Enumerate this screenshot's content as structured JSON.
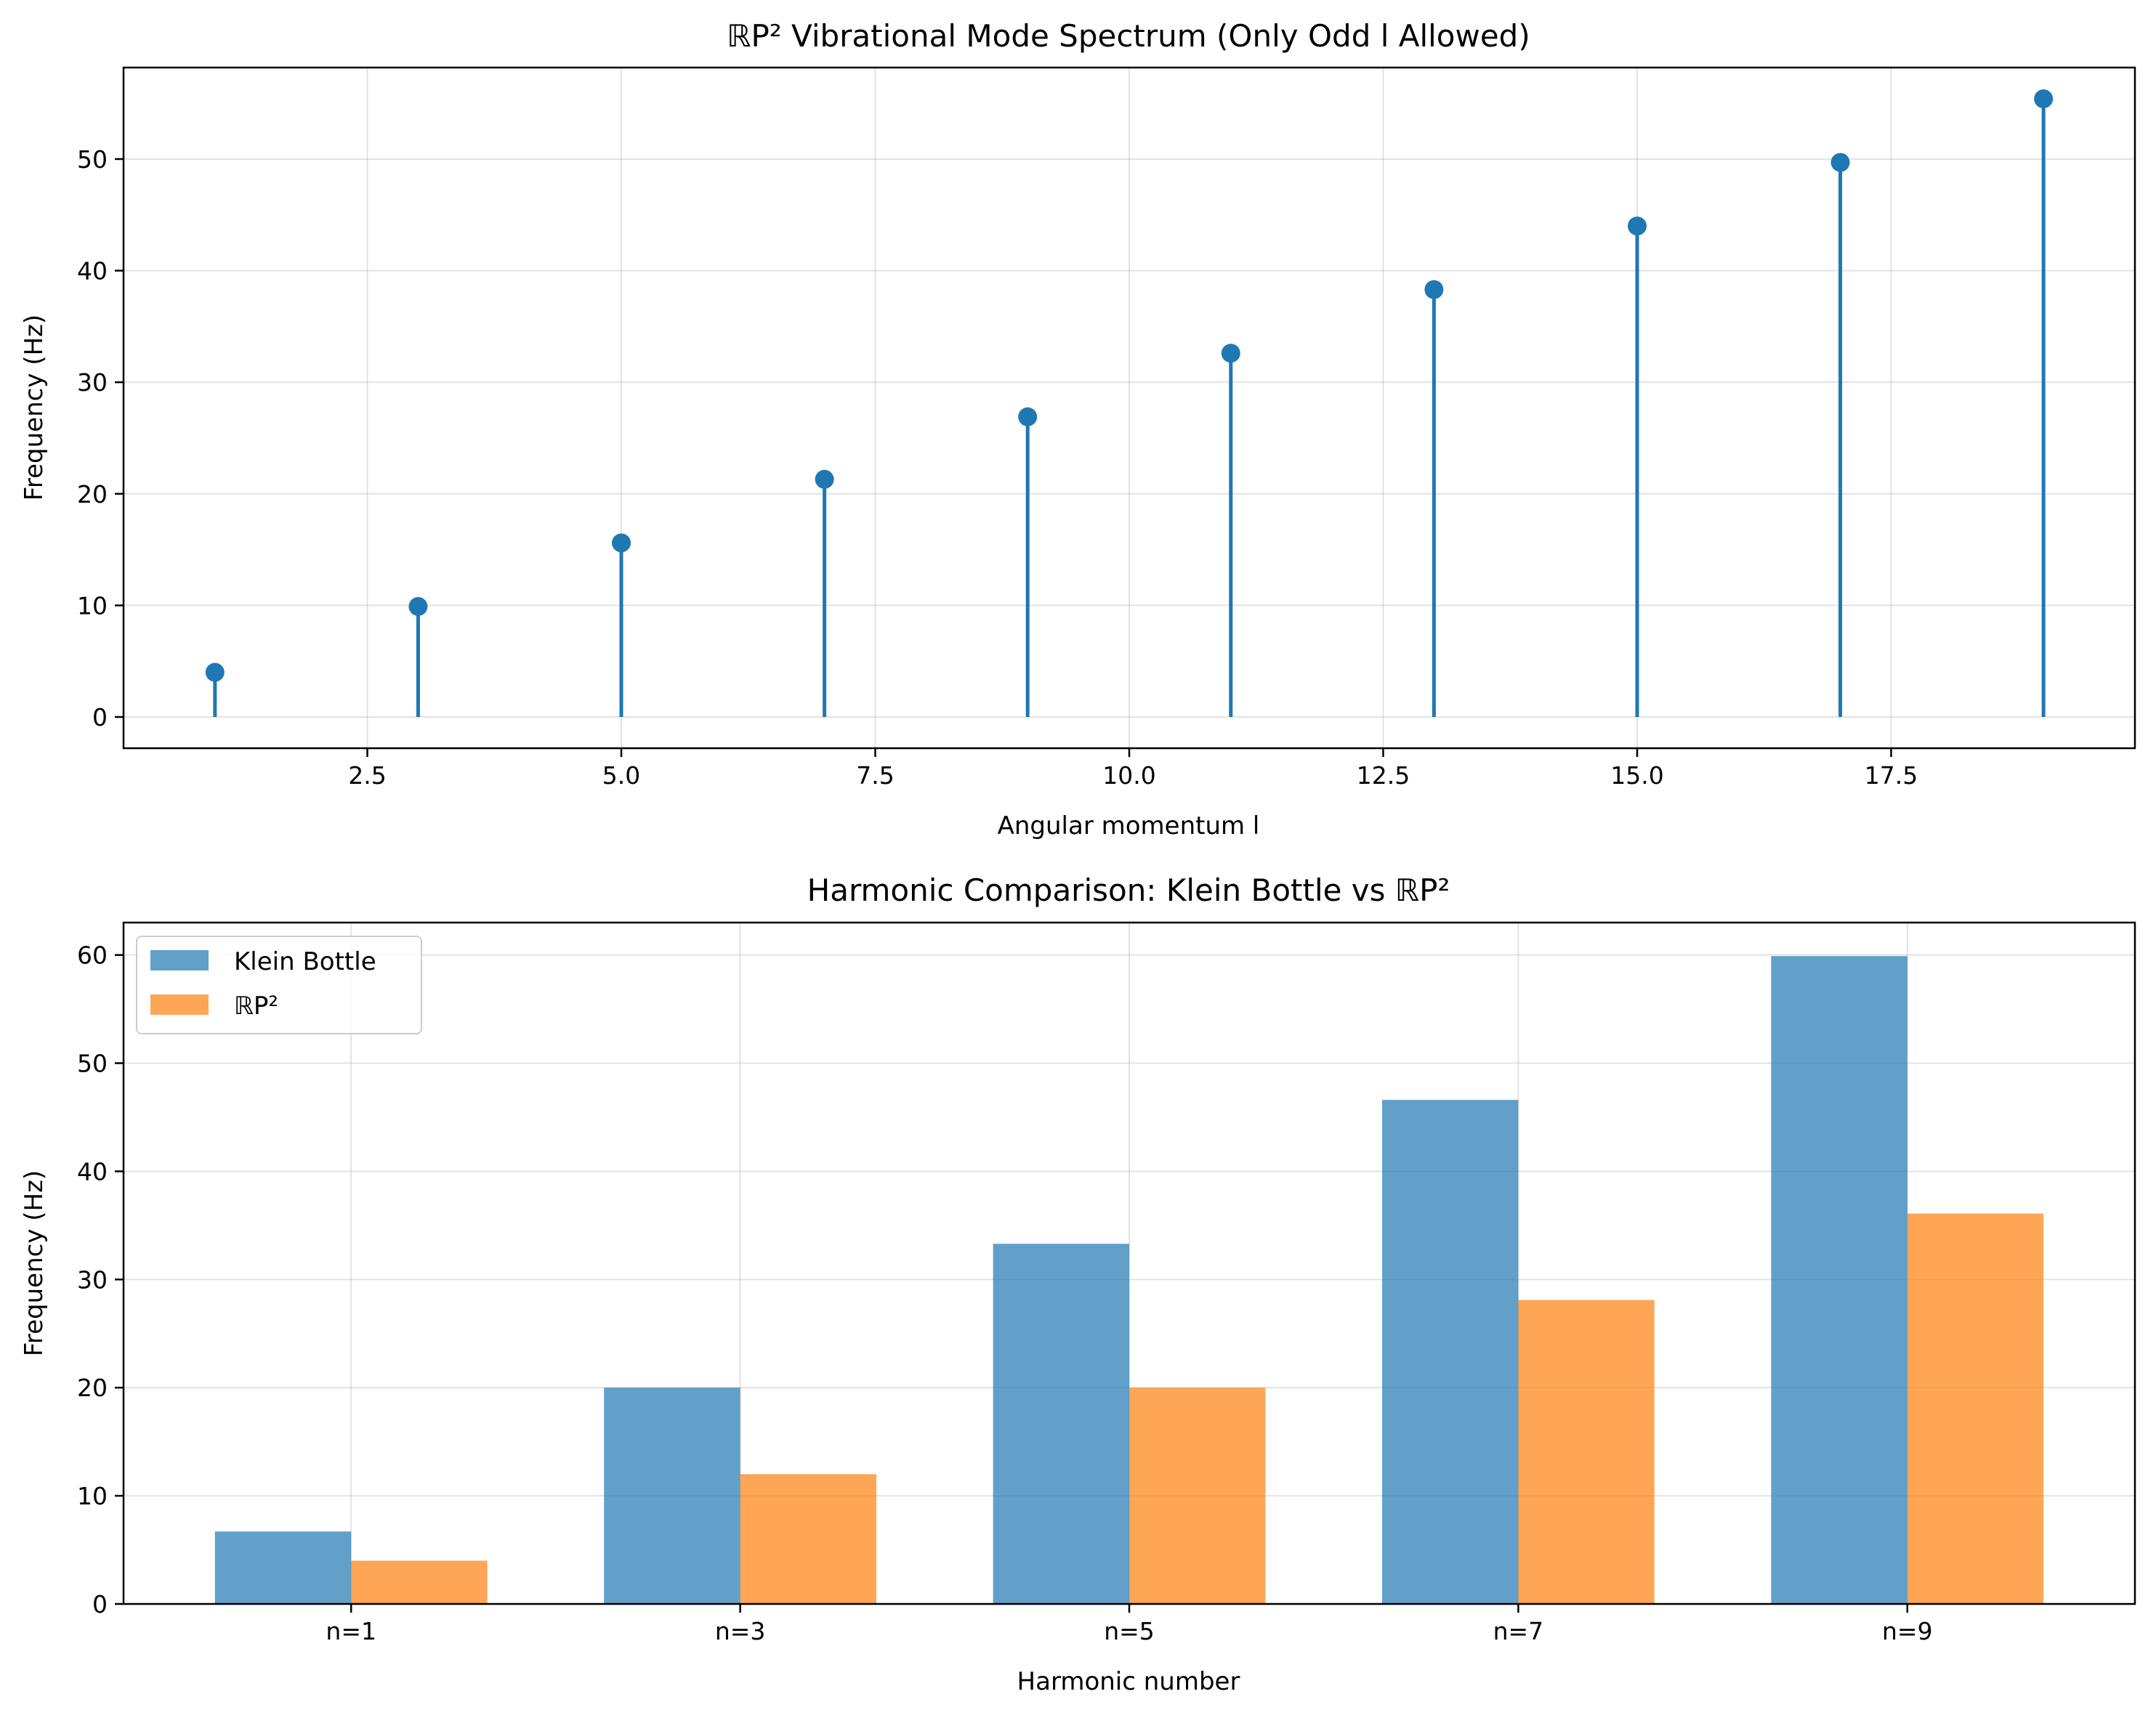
{
  "chart_data": [
    {
      "type": "stem",
      "title": "ℝP² Vibrational Mode Spectrum (Only Odd l Allowed)",
      "xlabel": "Angular momentum l",
      "ylabel": "Frequency (Hz)",
      "xlim": [
        0.1,
        19.9
      ],
      "ylim": [
        -2.8,
        58.2
      ],
      "xticks": [
        2.5,
        5.0,
        7.5,
        10.0,
        12.5,
        15.0,
        17.5
      ],
      "xtick_labels": [
        "2.5",
        "5.0",
        "7.5",
        "10.0",
        "12.5",
        "15.0",
        "17.5"
      ],
      "yticks": [
        0,
        10,
        20,
        30,
        40,
        50
      ],
      "ytick_labels": [
        "0",
        "10",
        "20",
        "30",
        "40",
        "50"
      ],
      "grid": true,
      "color": "#1f77b4",
      "x": [
        1,
        3,
        5,
        7,
        9,
        11,
        13,
        15,
        17,
        19
      ],
      "y": [
        4.0,
        9.9,
        15.6,
        21.3,
        26.9,
        32.6,
        38.3,
        44.0,
        49.7,
        55.4
      ]
    },
    {
      "type": "bar",
      "title": "Harmonic Comparison: Klein Bottle vs ℝP²",
      "xlabel": "Harmonic number",
      "ylabel": "Frequency (Hz)",
      "categories": [
        "n=1",
        "n=3",
        "n=5",
        "n=7",
        "n=9"
      ],
      "ylim": [
        0,
        63
      ],
      "yticks": [
        0,
        10,
        20,
        30,
        40,
        50,
        60
      ],
      "ytick_labels": [
        "0",
        "10",
        "20",
        "30",
        "40",
        "50",
        "60"
      ],
      "grid": true,
      "legend_position": "top-left",
      "series": [
        {
          "name": "Klein Bottle",
          "color": "#1f77b4",
          "opacity": 0.7,
          "values": [
            6.7,
            20.0,
            33.3,
            46.6,
            59.9
          ]
        },
        {
          "name": "ℝP²",
          "color": "#ff7f0e",
          "opacity": 0.7,
          "values": [
            4.0,
            12.0,
            20.0,
            28.1,
            36.1
          ]
        }
      ]
    }
  ]
}
